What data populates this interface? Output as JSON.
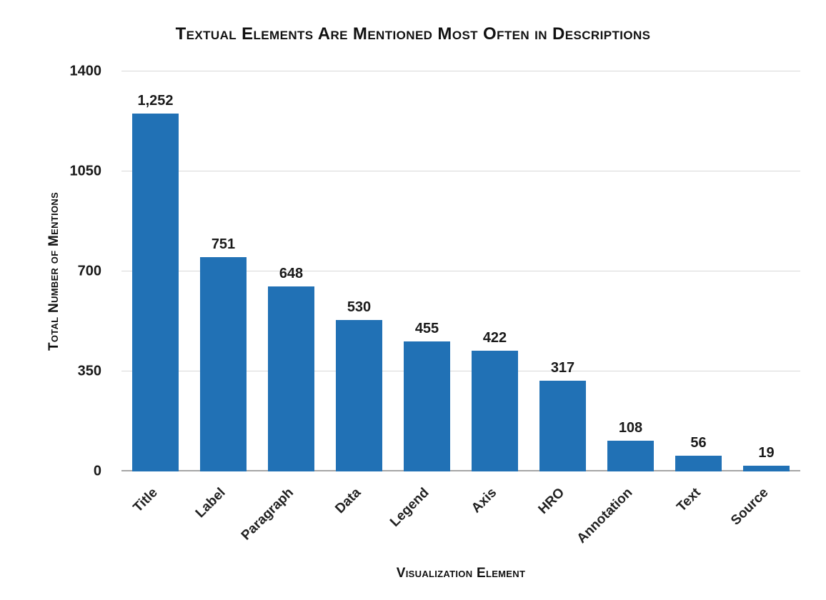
{
  "chart_data": {
    "type": "bar",
    "title": "Textual Elements Are Mentioned Most Often in Descriptions",
    "xlabel": "Visualization Element",
    "ylabel": "Total Number of Mentions",
    "categories": [
      "Title",
      "Label",
      "Paragraph",
      "Data",
      "Legend",
      "Axis",
      "HRO",
      "Annotation",
      "Text",
      "Source"
    ],
    "values": [
      1252,
      751,
      648,
      530,
      455,
      422,
      317,
      108,
      56,
      19
    ],
    "value_labels": [
      "1,252",
      "751",
      "648",
      "530",
      "455",
      "422",
      "317",
      "108",
      "56",
      "19"
    ],
    "yticks": [
      0,
      350,
      700,
      1050,
      1400
    ],
    "ytick_labels": [
      "0",
      "350",
      "700",
      "1050",
      "1400"
    ],
    "ylim": [
      0,
      1400
    ],
    "grid": true,
    "legend": false,
    "bar_color": "#2171B5"
  }
}
